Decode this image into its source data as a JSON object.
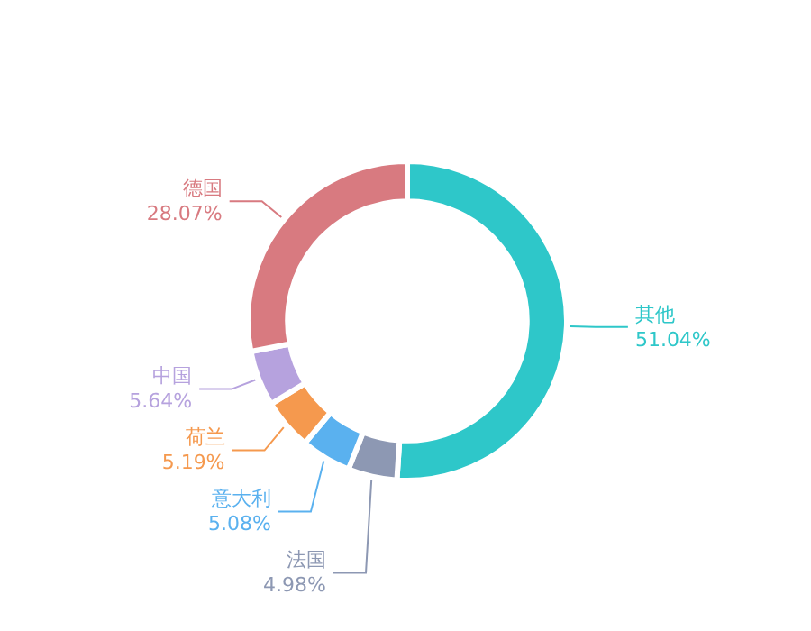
{
  "chart_data": {
    "type": "donut",
    "categories": [
      "其他",
      "法国",
      "意大利",
      "荷兰",
      "中国",
      "德国"
    ],
    "values": [
      51.04,
      4.98,
      5.08,
      5.19,
      5.64,
      28.07
    ],
    "value_labels": [
      "51.04%",
      "4.98%",
      "5.08%",
      "5.19%",
      "5.64%",
      "28.07%"
    ],
    "colors": [
      "#2ec7c9",
      "#8d98b3",
      "#5ab1ef",
      "#f5994e",
      "#b6a2de",
      "#d87a80"
    ],
    "legend": false
  }
}
